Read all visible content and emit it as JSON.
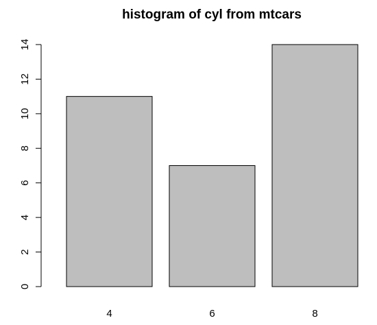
{
  "chart_data": {
    "type": "bar",
    "title": "histogram of cyl from mtcars",
    "categories": [
      "4",
      "6",
      "8"
    ],
    "values": [
      11,
      7,
      14
    ],
    "xlabel": "",
    "ylabel": "",
    "ylim": [
      0,
      14
    ],
    "yticks": [
      0,
      2,
      4,
      6,
      8,
      10,
      12,
      14
    ],
    "bar_color": "#bebebe",
    "grid": false,
    "legend": "none"
  }
}
